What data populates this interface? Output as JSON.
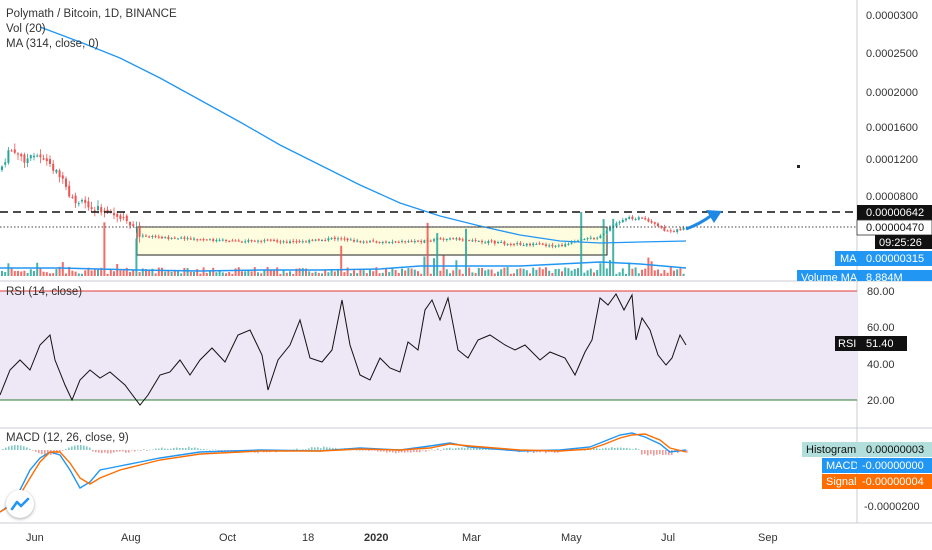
{
  "header": {
    "symbol_line": "Polymath / Bitcoin, 1D, BINANCE",
    "vol_line": "Vol (20)",
    "ma_line": "MA (314, close, 0)"
  },
  "rsi": {
    "label": "RSI (14, close)",
    "tag_label": "RSI",
    "tag_value": "51.40",
    "ticks": [
      "80.00",
      "60.00",
      "40.00",
      "20.00"
    ],
    "upper_band": 80,
    "lower_band": 20
  },
  "macd": {
    "label": "MACD (12, 26, close, 9)",
    "histogram_label": "Histogram",
    "histogram_value": "0.00000003",
    "macd_label": "MACD",
    "macd_value": "-0.00000000",
    "signal_label": "Signal",
    "signal_value": "-0.00000004",
    "ticks": [
      "-0.0000200"
    ]
  },
  "price_axis": {
    "ticks": [
      "0.0000300",
      "0.0002500",
      "0.0002000",
      "0.0001600",
      "0.0001200",
      "0.0000800"
    ],
    "level_label": "0.00000642",
    "last_label": "0.00000470",
    "countdown": "09:25:26",
    "ma_label": "MA",
    "ma_value": "0.00000315",
    "volume_ma_label": "Volume MA",
    "volume_ma_value": "8.884M"
  },
  "time_axis": {
    "ticks": [
      "Jun",
      "Aug",
      "Oct",
      "18",
      "2020",
      "Mar",
      "May",
      "Jul",
      "Sep"
    ]
  },
  "colors": {
    "up": "#26a69a",
    "down": "#ef5350",
    "ma": "#2196f3",
    "rsi_fill": "#ede7f6",
    "box_fill": "#fffde7",
    "arrow": "#1e88e5",
    "macd_line": "#2196f3",
    "signal_line": "#ff6d00"
  },
  "chart_data": [
    {
      "type": "line",
      "title": "Polymath / Bitcoin, 1D, BINANCE",
      "x": [
        "Jun",
        "Jul",
        "Aug",
        "Oct",
        "18",
        "2020",
        "Mar",
        "May",
        "Jun",
        "Jul"
      ],
      "series": [
        {
          "name": "MA (314, close, 0)",
          "values": [
            3e-05,
            2.4e-05,
            1.85e-05,
            1.4e-05,
            1e-05,
            7.2e-06,
            5.2e-06,
            3.8e-06,
            3.5e-06,
            3.4e-06
          ]
        }
      ],
      "horizontal_lines": [
        6.42e-06,
        4.7e-06
      ]
    },
    {
      "type": "line",
      "title": "RSI (14, close)",
      "ylim": [
        0,
        100
      ],
      "x": [
        "Jun",
        "Aug",
        "Oct",
        "18",
        "2020",
        "Mar",
        "May",
        "Jul"
      ],
      "series": [
        {
          "name": "RSI (14, close)",
          "values": [
            55,
            20,
            52,
            75,
            35,
            78,
            45,
            51.4
          ]
        }
      ]
    },
    {
      "type": "line",
      "title": "MACD (12, 26, close, 9)",
      "series": [
        {
          "name": "Histogram",
          "values": [
            3e-08
          ]
        },
        {
          "name": "MACD",
          "values": [
            -0.0
          ]
        },
        {
          "name": "Signal",
          "values": [
            -4e-08
          ]
        }
      ]
    }
  ]
}
